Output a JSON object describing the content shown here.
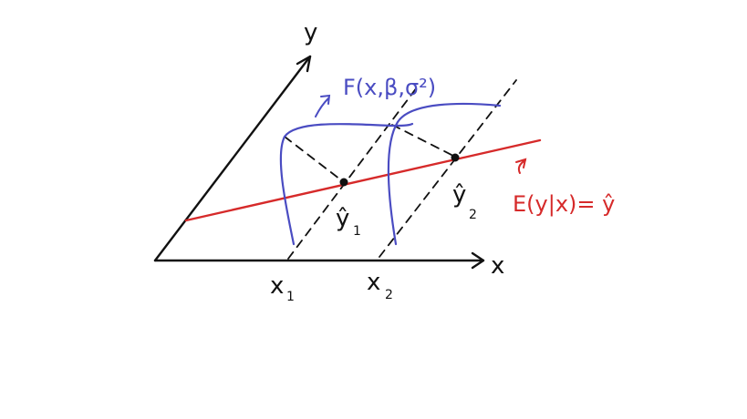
{
  "axes": {
    "y_label": "y",
    "x_label": "x"
  },
  "x_ticks": [
    {
      "main": "x",
      "sub": "1"
    },
    {
      "main": "x",
      "sub": "2"
    }
  ],
  "fitted_points": [
    {
      "main": "ŷ",
      "sub": "1"
    },
    {
      "main": "ŷ",
      "sub": "2"
    }
  ],
  "distribution_label": "F(x,β,σ²)",
  "regression_label": "E(y|x)= ŷ",
  "colors": {
    "axes": "#111111",
    "distribution": "#4a4cc2",
    "regression": "#d62a2a"
  }
}
